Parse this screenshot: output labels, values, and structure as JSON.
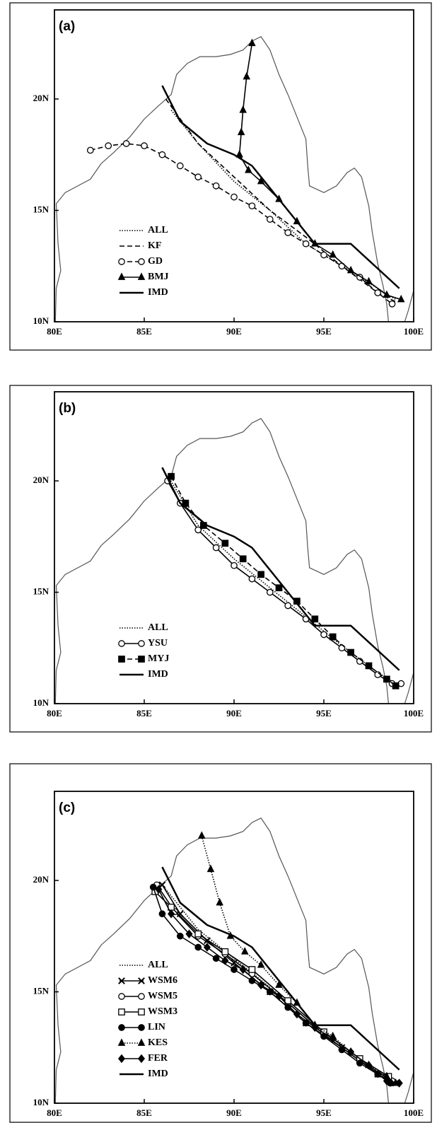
{
  "chart_data": [
    {
      "type": "line",
      "title": "(a)",
      "xlim": [
        80,
        100
      ],
      "ylim": [
        10,
        24
      ],
      "xticks": [
        {
          "value": 80,
          "label": "80E"
        },
        {
          "value": 85,
          "label": "85E"
        },
        {
          "value": 90,
          "label": "90E"
        },
        {
          "value": 95,
          "label": "95E"
        },
        {
          "value": 100,
          "label": "100E"
        }
      ],
      "yticks": [
        {
          "value": 10,
          "label": "10N"
        },
        {
          "value": 15,
          "label": "15N"
        },
        {
          "value": 20,
          "label": "20N"
        }
      ],
      "series": [
        {
          "name": "ALL",
          "color": "#000",
          "dash": "dotted",
          "marker": "none",
          "x": [
            86.5,
            88,
            90,
            92,
            94,
            96,
            98,
            99
          ],
          "values": [
            19.5,
            18,
            16.3,
            15,
            13.5,
            12.5,
            11.5,
            11
          ]
        },
        {
          "name": "KF",
          "color": "#000",
          "dash": "dashed",
          "marker": "none",
          "x": [
            86.2,
            88,
            90,
            92,
            94,
            96,
            98,
            99
          ],
          "values": [
            20,
            18,
            16.5,
            15,
            13.8,
            12.5,
            11.3,
            10.9
          ]
        },
        {
          "name": "GD",
          "color": "#000",
          "dash": "dashed",
          "marker": "circle-open",
          "x": [
            82,
            83,
            84,
            85,
            86,
            87,
            88,
            89,
            90,
            91,
            92,
            93,
            94,
            95,
            96,
            97,
            98,
            98.8
          ],
          "values": [
            17.7,
            17.9,
            18,
            17.9,
            17.5,
            17,
            16.5,
            16.1,
            15.6,
            15.2,
            14.6,
            14,
            13.5,
            13,
            12.5,
            12,
            11.3,
            10.8
          ]
        },
        {
          "name": "BMJ",
          "color": "#000",
          "dash": "solid",
          "marker": "triangle",
          "x": [
            91,
            90.7,
            90.5,
            90.4,
            90.3,
            90.8,
            91.5,
            92.5,
            93.5,
            94.5,
            95.5,
            96.5,
            97.5,
            98.5,
            99.3
          ],
          "values": [
            22.5,
            21,
            19.5,
            18.5,
            17.5,
            16.8,
            16.3,
            15.5,
            14.5,
            13.5,
            13,
            12.3,
            11.8,
            11.2,
            11
          ]
        },
        {
          "name": "IMD",
          "color": "#000",
          "dash": "solid",
          "marker": "none",
          "line_width": 2.5,
          "x": [
            86,
            87,
            88.5,
            90,
            91,
            92.5,
            94.5,
            96.5,
            99.2
          ],
          "values": [
            20.6,
            19,
            18,
            17.5,
            17,
            15.5,
            13.5,
            13.5,
            11.5
          ]
        }
      ]
    },
    {
      "type": "line",
      "title": "(b)",
      "xlim": [
        80,
        100
      ],
      "ylim": [
        10,
        24
      ],
      "xticks": [
        {
          "value": 80,
          "label": "80E"
        },
        {
          "value": 85,
          "label": "85E"
        },
        {
          "value": 90,
          "label": "90E"
        },
        {
          "value": 95,
          "label": "95E"
        },
        {
          "value": 100,
          "label": "100E"
        }
      ],
      "yticks": [
        {
          "value": 10,
          "label": "10N"
        },
        {
          "value": 15,
          "label": "15N"
        },
        {
          "value": 20,
          "label": "20N"
        }
      ],
      "series": [
        {
          "name": "ALL",
          "color": "#000",
          "dash": "dotted",
          "marker": "none",
          "x": [
            86.4,
            88,
            90,
            92,
            94,
            96,
            98,
            99
          ],
          "values": [
            20.1,
            18,
            16.5,
            15.2,
            13.9,
            12.6,
            11.4,
            10.9
          ]
        },
        {
          "name": "YSU",
          "color": "#000",
          "dash": "solid",
          "marker": "circle-open",
          "x": [
            86.3,
            87,
            88,
            89,
            90,
            91,
            92,
            93,
            94,
            95,
            96,
            97,
            98,
            98.8,
            99.3
          ],
          "values": [
            20,
            19,
            17.8,
            17,
            16.2,
            15.6,
            15,
            14.4,
            13.8,
            13.1,
            12.5,
            11.9,
            11.3,
            10.9,
            10.9
          ]
        },
        {
          "name": "MYJ",
          "color": "#000",
          "dash": "dashed",
          "marker": "square",
          "x": [
            86.5,
            87.3,
            88.3,
            89.5,
            90.5,
            91.5,
            92.5,
            93.5,
            94.5,
            95.5,
            96.5,
            97.5,
            98.5,
            99
          ],
          "values": [
            20.2,
            19,
            18,
            17.2,
            16.5,
            15.8,
            15.2,
            14.6,
            13.8,
            13,
            12.3,
            11.7,
            11.1,
            10.8
          ]
        },
        {
          "name": "IMD",
          "color": "#000",
          "dash": "solid",
          "marker": "none",
          "line_width": 2.5,
          "x": [
            86,
            87,
            88.5,
            90,
            91,
            92.5,
            94.5,
            96.5,
            99.2
          ],
          "values": [
            20.6,
            19,
            18,
            17.5,
            17,
            15.5,
            13.5,
            13.5,
            11.5
          ]
        }
      ]
    },
    {
      "type": "line",
      "title": "(c)",
      "xlim": [
        80,
        100
      ],
      "ylim": [
        10,
        24
      ],
      "xticks": [
        {
          "value": 80,
          "label": "80E"
        },
        {
          "value": 85,
          "label": "85E"
        },
        {
          "value": 90,
          "label": "90E"
        },
        {
          "value": 95,
          "label": "95E"
        },
        {
          "value": 100,
          "label": "100E"
        }
      ],
      "yticks": [
        {
          "value": 10,
          "label": "10N"
        },
        {
          "value": 15,
          "label": "15N"
        },
        {
          "value": 20,
          "label": "20N"
        }
      ],
      "series": [
        {
          "name": "ALL",
          "color": "#000",
          "dash": "dotted",
          "marker": "none",
          "x": [
            86,
            88,
            90,
            92,
            94,
            96,
            98,
            99
          ],
          "values": [
            19.8,
            17.8,
            16.5,
            15.2,
            13.8,
            12.6,
            11.4,
            11
          ]
        },
        {
          "name": "WSM6",
          "color": "#000",
          "dash": "solid",
          "marker": "x",
          "x": [
            86,
            87,
            88.5,
            90,
            92,
            94,
            96,
            98,
            99
          ],
          "values": [
            19.8,
            18.5,
            17.3,
            16.3,
            15,
            13.6,
            12.5,
            11.3,
            10.9
          ]
        },
        {
          "name": "WSM5",
          "color": "#000",
          "dash": "solid",
          "marker": "circle-open",
          "x": [
            85.7,
            86.7,
            88,
            89.5,
            91,
            93,
            95,
            97,
            98.8
          ],
          "values": [
            19.8,
            18.6,
            17.5,
            16.7,
            15.8,
            14.5,
            13.1,
            11.9,
            11
          ]
        },
        {
          "name": "WSM3",
          "color": "#000",
          "dash": "solid",
          "marker": "square-open",
          "x": [
            85.6,
            86.5,
            88,
            89.5,
            91,
            93,
            95,
            97,
            98.6
          ],
          "values": [
            19.5,
            18.8,
            17.6,
            16.8,
            16,
            14.6,
            13.2,
            12,
            11.2
          ]
        },
        {
          "name": "LIN",
          "color": "#000",
          "dash": "solid",
          "marker": "circle",
          "x": [
            85.5,
            86,
            87,
            88,
            89,
            90,
            91,
            92,
            93,
            94,
            95,
            96,
            97,
            98,
            98.7
          ],
          "values": [
            19.7,
            18.5,
            17.5,
            17,
            16.5,
            16,
            15.5,
            15,
            14.3,
            13.6,
            13,
            12.4,
            11.8,
            11.3,
            10.9
          ]
        },
        {
          "name": "KES",
          "color": "#000",
          "dash": "dotted",
          "marker": "triangle",
          "x": [
            88.2,
            88.7,
            89.2,
            89.8,
            90.6,
            91.5,
            92.5,
            93.5,
            94.5,
            95.5,
            96.5,
            97.5,
            98.5,
            99
          ],
          "values": [
            22,
            20.5,
            19,
            17.5,
            16.8,
            16.2,
            15.3,
            14.5,
            13.5,
            13,
            12.3,
            11.7,
            11.2,
            10.9
          ]
        },
        {
          "name": "FER",
          "color": "#000",
          "dash": "solid",
          "marker": "diamond",
          "x": [
            85.8,
            86.5,
            87.5,
            88.5,
            89.5,
            90.5,
            91.5,
            92.5,
            93.5,
            94.5,
            95.5,
            96.5,
            97.5,
            98.5,
            99.2
          ],
          "values": [
            19.6,
            18.5,
            17.6,
            17,
            16.4,
            16,
            15.3,
            14.8,
            14,
            13.4,
            12.9,
            12.3,
            11.7,
            11,
            10.9
          ]
        },
        {
          "name": "IMD",
          "color": "#000",
          "dash": "solid",
          "marker": "none",
          "line_width": 2.5,
          "x": [
            86,
            87,
            88.5,
            90,
            91,
            92.5,
            94.5,
            96.5,
            99.2
          ],
          "values": [
            20.6,
            19,
            18,
            17.5,
            17,
            15.5,
            13.5,
            13.5,
            11.5
          ]
        }
      ]
    }
  ]
}
